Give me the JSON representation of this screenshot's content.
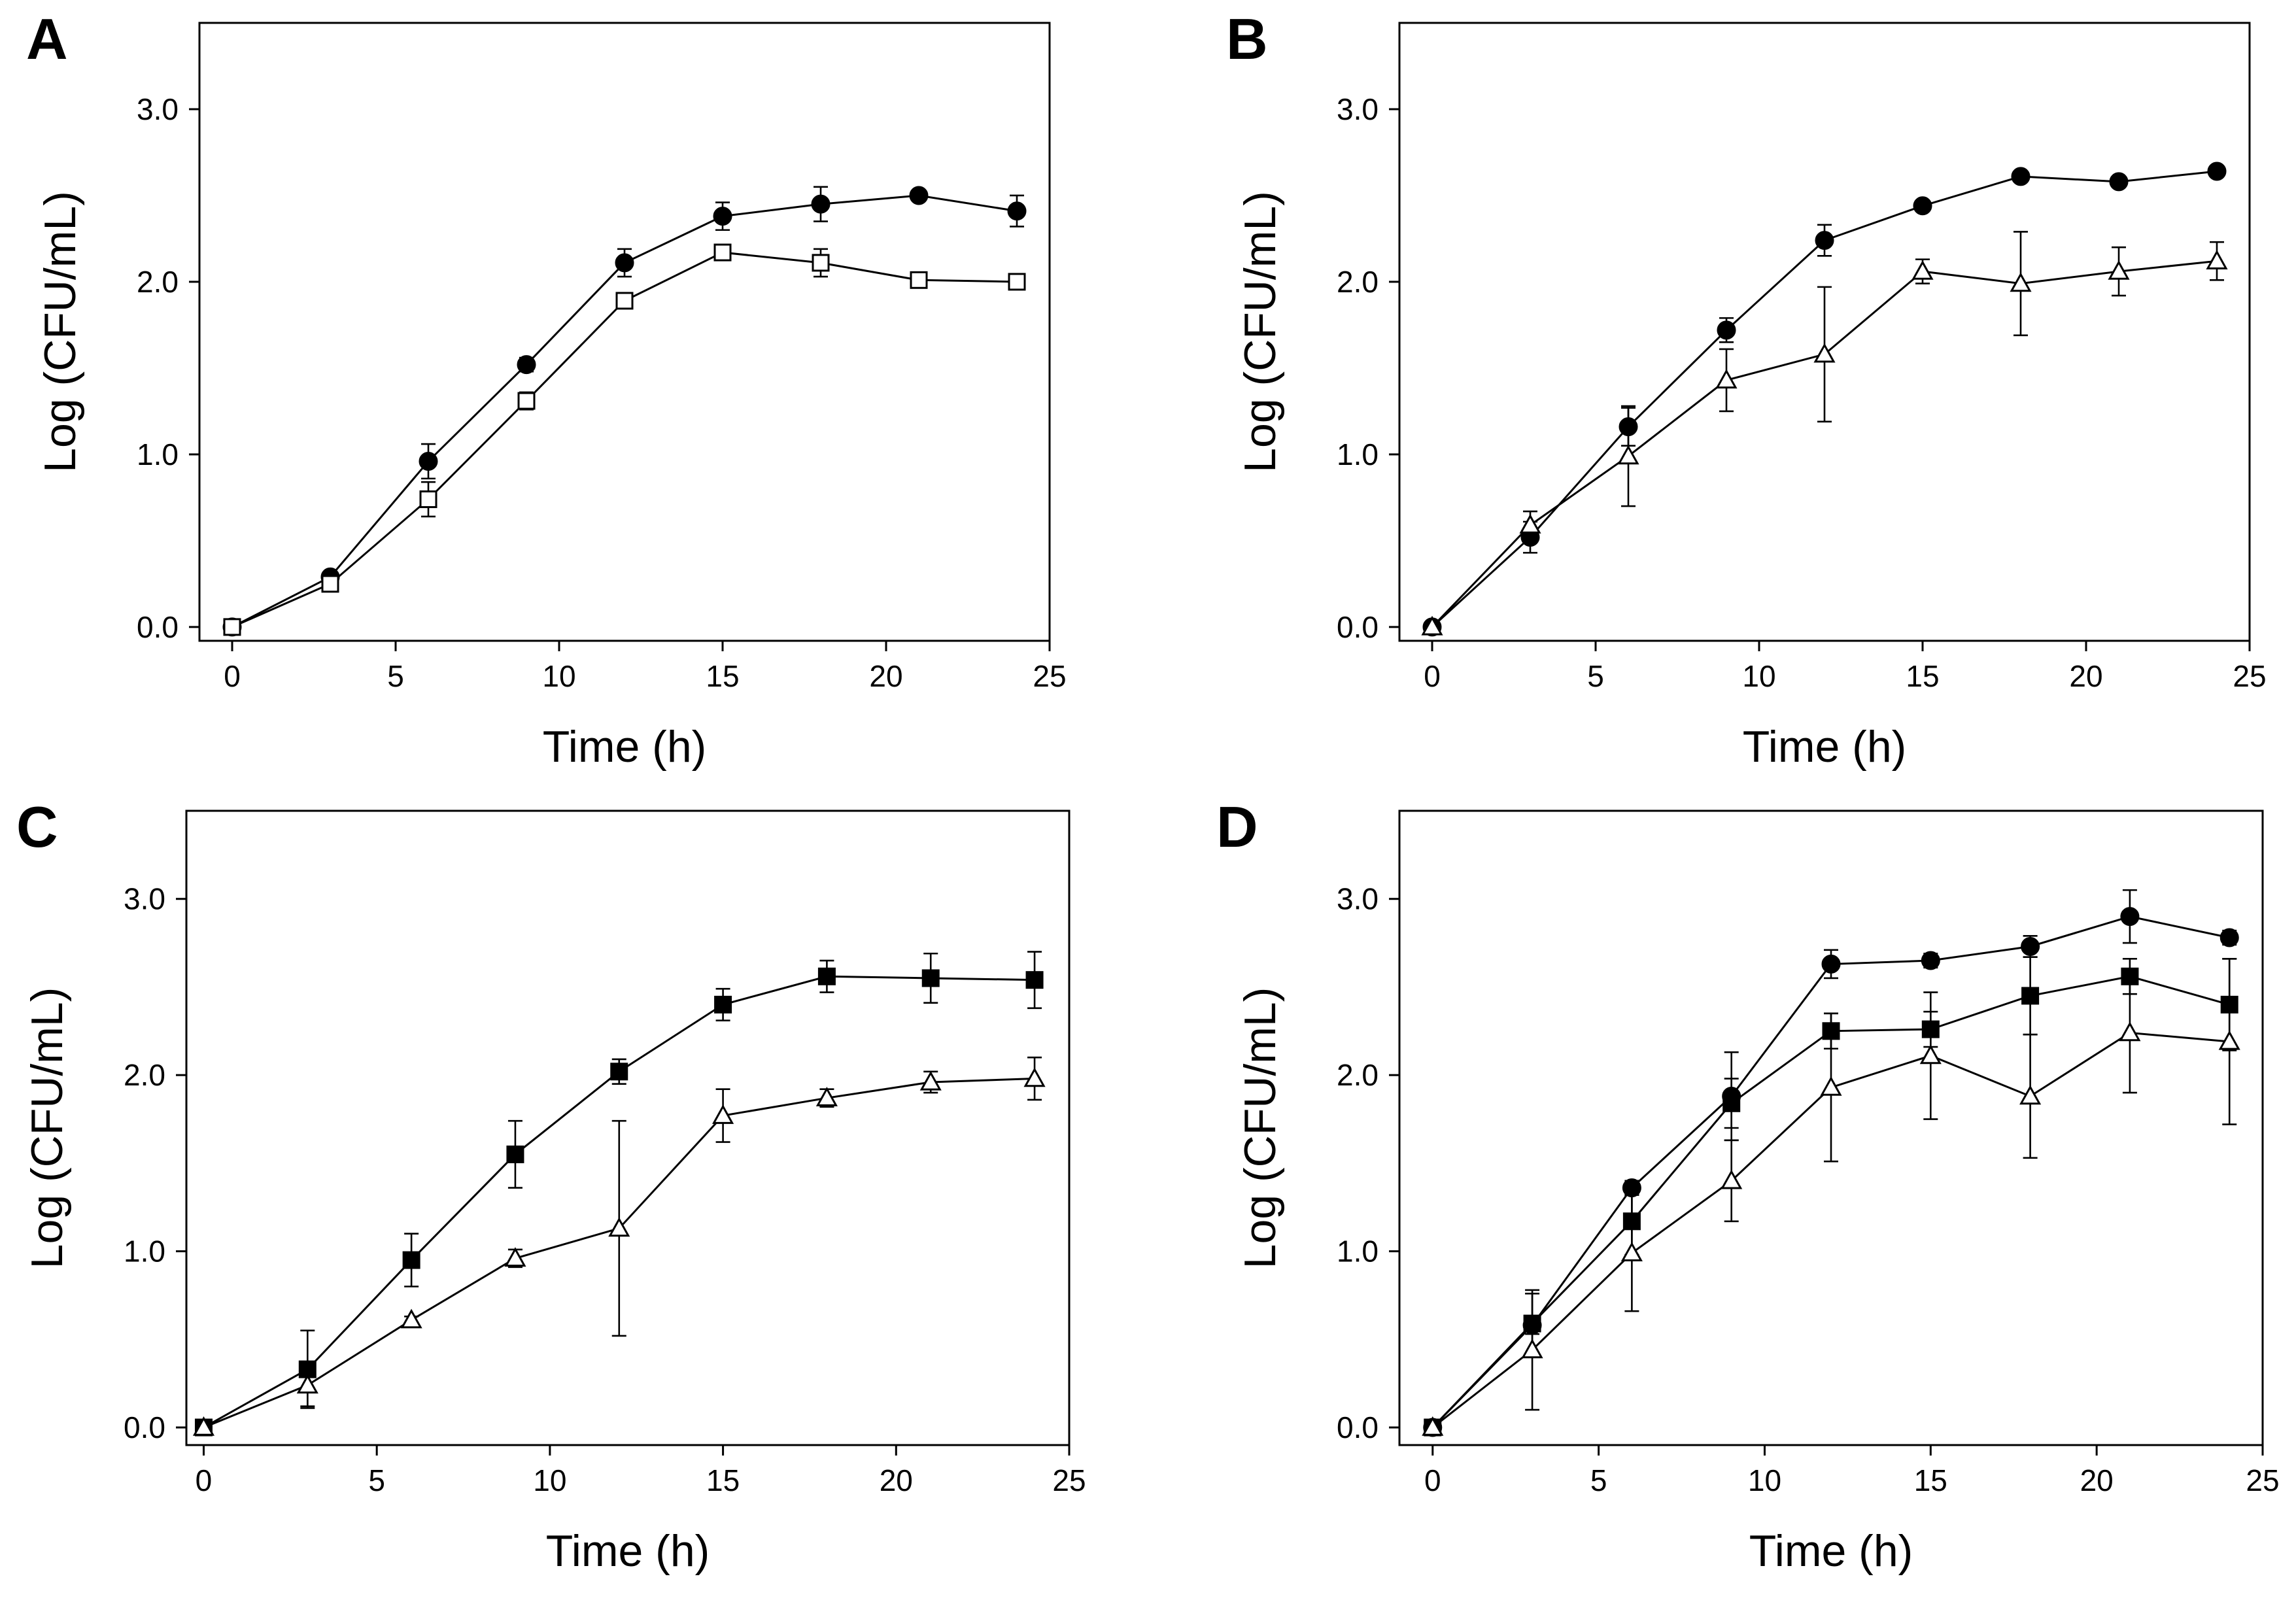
{
  "chart_data": [
    {
      "panel": "A",
      "type": "line",
      "xlabel": "Time (h)",
      "ylabel": "Log (CFU/mL)",
      "xlim": [
        -1,
        25
      ],
      "ylim": [
        -0.08,
        3.5
      ],
      "xticks": [
        0,
        5,
        10,
        15,
        20,
        25
      ],
      "yticks": [
        0.0,
        1.0,
        2.0,
        3.0
      ],
      "ytick_labels": [
        "0.0",
        "1.0",
        "2.0",
        "3.0"
      ],
      "x": [
        0,
        3,
        6,
        9,
        12,
        15,
        18,
        21,
        24
      ],
      "series": [
        {
          "name": "filled circle",
          "marker": "circle",
          "fill": "#000000",
          "values": [
            0.0,
            0.29,
            0.96,
            1.52,
            2.11,
            2.38,
            2.45,
            2.5,
            2.41
          ],
          "errors": [
            0.0,
            0.02,
            0.1,
            0.04,
            0.08,
            0.08,
            0.1,
            0.03,
            0.09
          ]
        },
        {
          "name": "open square",
          "marker": "square",
          "fill": "#ffffff",
          "values": [
            0.0,
            0.25,
            0.74,
            1.31,
            1.89,
            2.17,
            2.11,
            2.01,
            2.0
          ],
          "errors": [
            0.0,
            0.02,
            0.1,
            0.05,
            0.04,
            0.03,
            0.08,
            0.03,
            0.03
          ]
        }
      ]
    },
    {
      "panel": "B",
      "type": "line",
      "xlabel": "Time (h)",
      "ylabel": "Log (CFU/mL)",
      "xlim": [
        -1,
        25
      ],
      "ylim": [
        -0.08,
        3.5
      ],
      "xticks": [
        0,
        5,
        10,
        15,
        20,
        25
      ],
      "yticks": [
        0.0,
        1.0,
        2.0,
        3.0
      ],
      "ytick_labels": [
        "0.0",
        "1.0",
        "2.0",
        "3.0"
      ],
      "x": [
        0,
        3,
        6,
        9,
        12,
        15,
        18,
        21,
        24
      ],
      "series": [
        {
          "name": "filled circle",
          "marker": "circle",
          "fill": "#000000",
          "values": [
            0.0,
            0.52,
            1.16,
            1.72,
            2.24,
            2.44,
            2.61,
            2.58,
            2.64
          ],
          "errors": [
            0.0,
            0.09,
            0.11,
            0.07,
            0.09,
            0.03,
            0.02,
            0.02,
            0.03
          ]
        },
        {
          "name": "open triangle",
          "marker": "triangle",
          "fill": "#ffffff",
          "values": [
            0.0,
            0.59,
            0.99,
            1.43,
            1.58,
            2.06,
            1.99,
            2.06,
            2.12
          ],
          "errors": [
            0.0,
            0.08,
            0.29,
            0.18,
            0.39,
            0.07,
            0.3,
            0.14,
            0.11
          ]
        }
      ]
    },
    {
      "panel": "C",
      "type": "line",
      "xlabel": "Time (h)",
      "ylabel": "Log (CFU/mL)",
      "xlim": [
        -0.5,
        25
      ],
      "ylim": [
        -0.1,
        3.5
      ],
      "xticks": [
        0,
        5,
        10,
        15,
        20,
        25
      ],
      "yticks": [
        0.0,
        1.0,
        2.0,
        3.0
      ],
      "ytick_labels": [
        "0.0",
        "1.0",
        "2.0",
        "3.0"
      ],
      "x": [
        0,
        3,
        6,
        9,
        12,
        15,
        18,
        21,
        24
      ],
      "series": [
        {
          "name": "filled square",
          "marker": "square",
          "fill": "#000000",
          "values": [
            0.0,
            0.33,
            0.95,
            1.55,
            2.02,
            2.4,
            2.56,
            2.55,
            2.54
          ],
          "errors": [
            0.0,
            0.22,
            0.15,
            0.19,
            0.07,
            0.09,
            0.09,
            0.14,
            0.16
          ]
        },
        {
          "name": "open triangle",
          "marker": "triangle",
          "fill": "#ffffff",
          "values": [
            0.0,
            0.24,
            0.61,
            0.96,
            1.13,
            1.77,
            1.87,
            1.96,
            1.98
          ],
          "errors": [
            0.0,
            0.12,
            0.02,
            0.05,
            0.61,
            0.15,
            0.05,
            0.06,
            0.12
          ]
        }
      ]
    },
    {
      "panel": "D",
      "type": "line",
      "xlabel": "Time (h)",
      "ylabel": "Log (CFU/mL)",
      "xlim": [
        -1,
        25
      ],
      "ylim": [
        -0.1,
        3.5
      ],
      "xticks": [
        0,
        5,
        10,
        15,
        20,
        25
      ],
      "yticks": [
        0.0,
        1.0,
        2.0,
        3.0
      ],
      "ytick_labels": [
        "0.0",
        "1.0",
        "2.0",
        "3.0"
      ],
      "x": [
        0,
        3,
        6,
        9,
        12,
        15,
        18,
        21,
        24
      ],
      "series": [
        {
          "name": "filled circle",
          "marker": "circle",
          "fill": "#000000",
          "values": [
            0.0,
            0.58,
            1.36,
            1.88,
            2.63,
            2.65,
            2.73,
            2.9,
            2.78
          ],
          "errors": [
            0.0,
            0.05,
            0.04,
            0.25,
            0.08,
            0.04,
            0.06,
            0.15,
            0.04
          ]
        },
        {
          "name": "filled square",
          "marker": "square",
          "fill": "#000000",
          "values": [
            0.0,
            0.59,
            1.17,
            1.84,
            2.25,
            2.26,
            2.45,
            2.56,
            2.4
          ],
          "errors": [
            0.0,
            0.17,
            0.19,
            0.14,
            0.1,
            0.1,
            0.22,
            0.1,
            0.26
          ]
        },
        {
          "name": "open triangle",
          "marker": "triangle",
          "fill": "#ffffff",
          "values": [
            0.0,
            0.44,
            0.99,
            1.4,
            1.93,
            2.11,
            1.88,
            2.24,
            2.19
          ],
          "errors": [
            0.0,
            0.34,
            0.33,
            0.23,
            0.42,
            0.36,
            0.35,
            0.34,
            0.47
          ]
        }
      ]
    }
  ]
}
